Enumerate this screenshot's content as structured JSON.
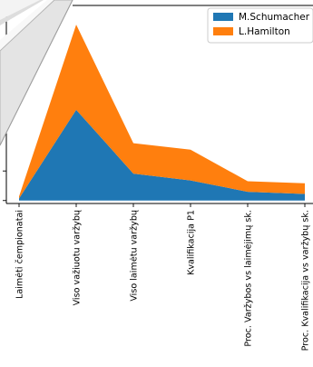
{
  "chart_data": {
    "type": "area",
    "stacked": true,
    "categories": [
      "Laimėti čempionatai",
      "Viso važiuotu varžybų",
      "Viso laimėtu varžybų",
      "Kvalifikacija P1",
      "Proc. Varžybos vs laimėjimų sk.",
      "Proc. Kvalifikacija vs varžybų sk."
    ],
    "series": [
      {
        "name": "M.Schumacher",
        "color": "#1f77b4",
        "values": [
          7,
          307,
          91,
          68,
          29.6,
          22.2
        ]
      },
      {
        "name": "L.Hamilton",
        "color": "#ff7f0e",
        "values": [
          7,
          288,
          103,
          104,
          35.8,
          36.1
        ]
      }
    ],
    "ylim": [
      -10,
      660
    ],
    "legend_position": "top-right",
    "grid": false
  }
}
